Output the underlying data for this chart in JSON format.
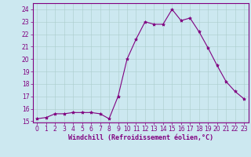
{
  "x": [
    0,
    1,
    2,
    3,
    4,
    5,
    6,
    7,
    8,
    9,
    10,
    11,
    12,
    13,
    14,
    15,
    16,
    17,
    18,
    19,
    20,
    21,
    22,
    23
  ],
  "y": [
    15.2,
    15.3,
    15.6,
    15.6,
    15.7,
    15.7,
    15.7,
    15.6,
    15.2,
    17.0,
    20.0,
    21.6,
    23.0,
    22.8,
    22.8,
    24.0,
    23.1,
    23.3,
    22.2,
    20.9,
    19.5,
    18.2,
    17.4,
    16.8
  ],
  "line_color": "#800080",
  "marker": "*",
  "marker_size": 3,
  "bg_color": "#cce8f0",
  "grid_color": "#aacccc",
  "xlabel": "Windchill (Refroidissement éolien,°C)",
  "xlabel_color": "#800080",
  "tick_color": "#800080",
  "spine_color": "#800080",
  "ylim": [
    14.9,
    24.5
  ],
  "xlim": [
    -0.5,
    23.5
  ],
  "yticks": [
    15,
    16,
    17,
    18,
    19,
    20,
    21,
    22,
    23,
    24
  ],
  "xticks": [
    0,
    1,
    2,
    3,
    4,
    5,
    6,
    7,
    8,
    9,
    10,
    11,
    12,
    13,
    14,
    15,
    16,
    17,
    18,
    19,
    20,
    21,
    22,
    23
  ],
  "tick_fontsize": 5.5,
  "xlabel_fontsize": 6.0
}
